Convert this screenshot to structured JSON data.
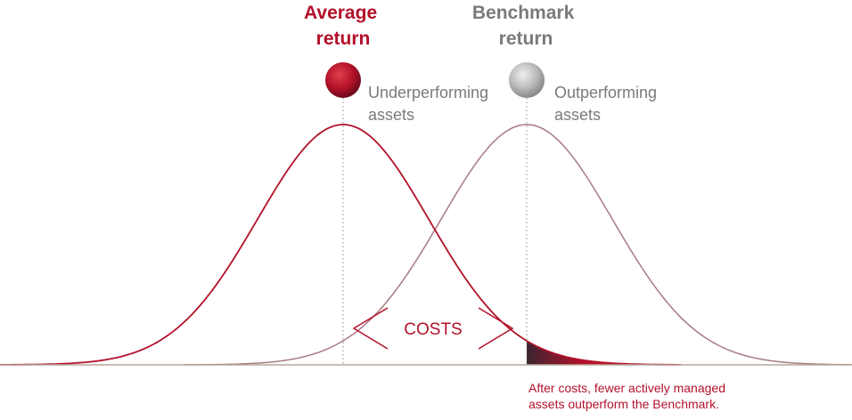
{
  "labels": {
    "average_return": [
      "Average",
      "return"
    ],
    "benchmark_return": [
      "Benchmark",
      "return"
    ],
    "underperforming": [
      "Underperforming",
      "assets"
    ],
    "outperforming": [
      "Outperforming",
      "assets"
    ],
    "costs": "COSTS",
    "note": [
      "After costs, fewer actively managed",
      "assets outperform the Benchmark."
    ]
  }
}
